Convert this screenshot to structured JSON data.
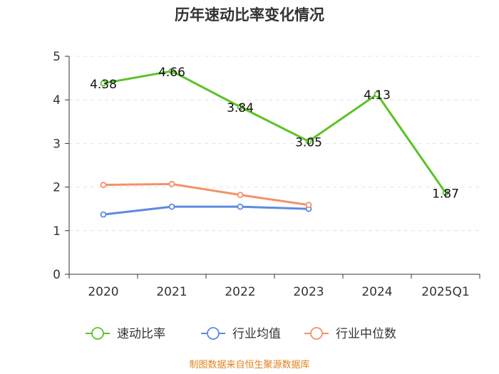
{
  "chart_data": {
    "type": "line",
    "title": "历年速动比率变化情况",
    "categories": [
      "2020",
      "2021",
      "2022",
      "2023",
      "2024",
      "2025Q1"
    ],
    "ylim": [
      0,
      5
    ],
    "yticks": [
      0,
      1,
      2,
      3,
      4,
      5
    ],
    "grid": true,
    "legend_position": "bottom",
    "series": [
      {
        "name": "速动比率",
        "color": "#5cc228",
        "values": [
          4.38,
          4.66,
          3.84,
          3.05,
          4.13,
          1.87
        ],
        "labels": [
          "4.38",
          "4.66",
          "3.84",
          "3.05",
          "4.13",
          "1.87"
        ]
      },
      {
        "name": "行业均值",
        "color": "#5b8be0",
        "values": [
          1.37,
          1.55,
          1.55,
          1.5,
          null,
          null
        ]
      },
      {
        "name": "行业中位数",
        "color": "#f5906a",
        "values": [
          2.05,
          2.07,
          1.82,
          1.59,
          null,
          null
        ]
      }
    ],
    "source": "制图数据来自恒生聚源数据库"
  }
}
